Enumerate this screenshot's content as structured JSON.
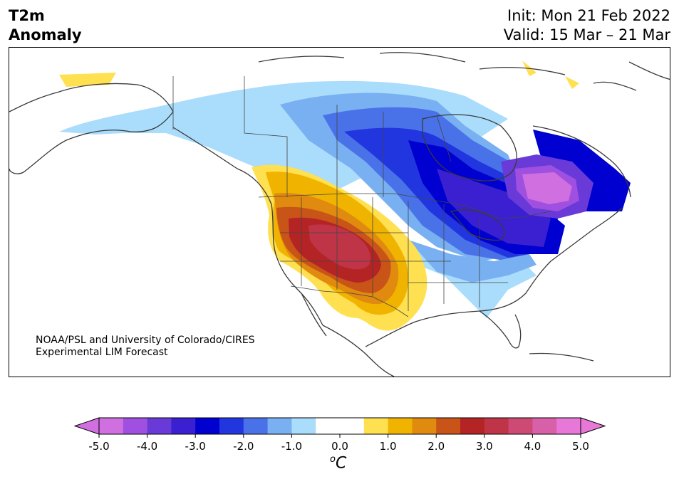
{
  "title": {
    "variable": "T2m",
    "kind": "Anomaly",
    "init": "Init: Mon 21 Feb 2022",
    "valid": "Valid: 15 Mar – 21 Mar"
  },
  "credit": {
    "line1": "NOAA/PSL and University of Colorado/CIRES",
    "line2": "Experimental LIM Forecast"
  },
  "colorbar": {
    "ticks": [
      "-5.0",
      "-4.0",
      "-3.0",
      "-2.0",
      "-1.0",
      "0.0",
      "1.0",
      "2.0",
      "3.0",
      "4.0",
      "5.0"
    ],
    "units_base": "C",
    "units_sup": "o",
    "under_color": "#d070e0",
    "over_color": "#e878d8",
    "bins": [
      {
        "from": -5.0,
        "to": -4.5,
        "color": "#d070e0"
      },
      {
        "from": -4.5,
        "to": -4.0,
        "color": "#a050e0"
      },
      {
        "from": -4.0,
        "to": -3.5,
        "color": "#6a3ad8"
      },
      {
        "from": -3.5,
        "to": -3.0,
        "color": "#3a20d0"
      },
      {
        "from": -3.0,
        "to": -2.5,
        "color": "#0000d0"
      },
      {
        "from": -2.5,
        "to": -2.0,
        "color": "#2236e0"
      },
      {
        "from": -2.0,
        "to": -1.5,
        "color": "#4a72e8"
      },
      {
        "from": -1.5,
        "to": -1.0,
        "color": "#78b0f2"
      },
      {
        "from": -1.0,
        "to": -0.5,
        "color": "#aadcfc"
      },
      {
        "from": -0.5,
        "to": 0.5,
        "color": "#ffffff"
      },
      {
        "from": 0.5,
        "to": 1.0,
        "color": "#ffe050"
      },
      {
        "from": 1.0,
        "to": 1.5,
        "color": "#f0b400"
      },
      {
        "from": 1.5,
        "to": 2.0,
        "color": "#e08a10"
      },
      {
        "from": 2.0,
        "to": 2.5,
        "color": "#c85418"
      },
      {
        "from": 2.5,
        "to": 3.0,
        "color": "#b42424"
      },
      {
        "from": 3.0,
        "to": 3.5,
        "color": "#c03448"
      },
      {
        "from": 3.5,
        "to": 4.0,
        "color": "#cc4a74"
      },
      {
        "from": 4.0,
        "to": 4.5,
        "color": "#d860a8"
      },
      {
        "from": 4.5,
        "to": 5.0,
        "color": "#e878d8"
      }
    ]
  },
  "map": {
    "region": "North America",
    "field": "2 m temperature anomaly, weekly forecast"
  }
}
